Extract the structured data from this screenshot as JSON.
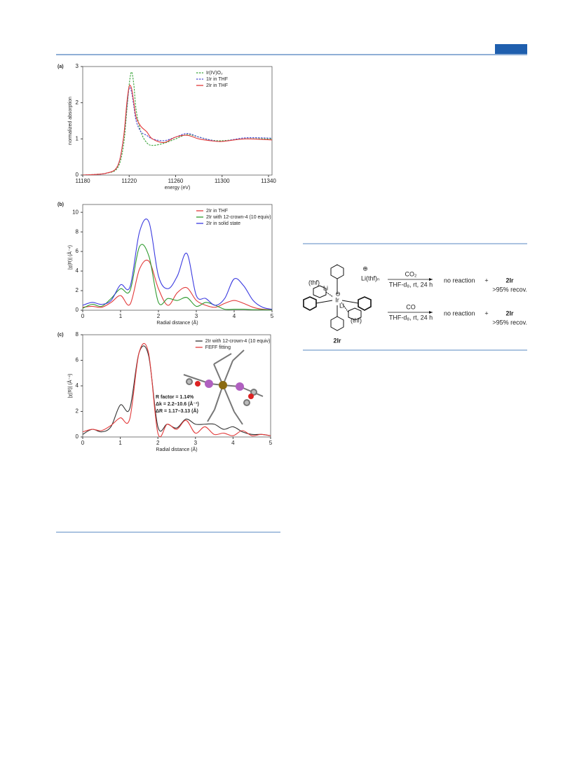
{
  "chart_data": [
    {
      "type": "line",
      "panel": "(a)",
      "xlabel": "energy (eV)",
      "ylabel": "normalized absorption",
      "xlim": [
        11180,
        11343
      ],
      "xticks": [
        11180,
        11220,
        11260,
        11300,
        11340
      ],
      "ylim": [
        0,
        3
      ],
      "yticks": [
        0,
        1,
        2,
        3
      ],
      "legend": "upper right",
      "x": [
        11180,
        11200,
        11210,
        11215,
        11218,
        11220,
        11222,
        11224,
        11226,
        11230,
        11235,
        11240,
        11250,
        11260,
        11270,
        11280,
        11290,
        11300,
        11320,
        11343
      ],
      "series": [
        {
          "name": "Ir(IV)O₂",
          "color": "#3aa43a",
          "dash": true,
          "values": [
            0,
            0.05,
            0.2,
            0.8,
            1.8,
            2.5,
            2.85,
            2.5,
            1.8,
            1.2,
            0.9,
            0.82,
            0.88,
            1.0,
            1.12,
            1.05,
            0.97,
            0.95,
            1.0,
            1.0
          ]
        },
        {
          "name": "1Ir in THF",
          "color": "#4a4ad0",
          "dash": true,
          "values": [
            0,
            0.05,
            0.25,
            1.0,
            1.9,
            2.4,
            2.3,
            1.9,
            1.5,
            1.2,
            1.1,
            1.0,
            0.95,
            1.05,
            1.15,
            1.05,
            0.97,
            0.93,
            1.03,
            1.02
          ]
        },
        {
          "name": "2Ir in THF",
          "color": "#e23a3a",
          "dash": false,
          "values": [
            0,
            0.05,
            0.25,
            1.0,
            2.0,
            2.45,
            2.4,
            2.0,
            1.6,
            1.35,
            1.2,
            1.0,
            0.9,
            1.05,
            1.1,
            1.0,
            0.95,
            0.93,
            1.0,
            0.97
          ]
        }
      ]
    },
    {
      "type": "line",
      "panel": "(b)",
      "xlabel": "Radial distance (Å)",
      "ylabel": "|χ(R)| (Å⁻⁴)",
      "xlim": [
        0,
        5
      ],
      "xticks": [
        0,
        1,
        2,
        3,
        4,
        5
      ],
      "ylim": [
        0,
        10.8
      ],
      "yticks": [
        0,
        2,
        4,
        6,
        8,
        10
      ],
      "legend": "upper right",
      "x": [
        0,
        0.25,
        0.5,
        0.75,
        1.0,
        1.25,
        1.5,
        1.75,
        2.0,
        2.25,
        2.5,
        2.75,
        3.0,
        3.25,
        3.5,
        3.75,
        4.0,
        4.25,
        4.5,
        4.75,
        5.0
      ],
      "series": [
        {
          "name": "2Ir in THF",
          "color": "#e23a3a",
          "dash": false,
          "values": [
            0.3,
            0.4,
            0.3,
            0.8,
            1.5,
            0.6,
            4.2,
            5.0,
            2.2,
            0.5,
            1.8,
            2.3,
            1.0,
            0.5,
            0.3,
            0.7,
            1.0,
            0.7,
            0.3,
            0.1,
            0.05
          ]
        },
        {
          "name": "2Ir with 12-crown-4 (10 equiv)",
          "color": "#2e9a2e",
          "dash": false,
          "values": [
            0.2,
            0.6,
            0.4,
            1.2,
            2.2,
            2.0,
            6.5,
            5.5,
            0.8,
            1.2,
            1.0,
            1.3,
            0.4,
            0.8,
            0.5,
            0.1,
            0.1,
            0.1,
            0.05,
            0.05,
            0.02
          ]
        },
        {
          "name": "2Ir in solid state",
          "color": "#3a3ae0",
          "dash": false,
          "values": [
            0.5,
            0.8,
            0.6,
            1.0,
            2.6,
            2.4,
            8.0,
            9.0,
            3.5,
            2.2,
            3.5,
            5.8,
            1.5,
            1.2,
            0.5,
            1.2,
            3.2,
            2.5,
            1.0,
            0.3,
            0.1
          ]
        }
      ]
    },
    {
      "type": "line",
      "panel": "(c)",
      "xlabel": "Radial distance (Å)",
      "ylabel": "|χ(R)| (Å⁻⁴)",
      "xlim": [
        0,
        5
      ],
      "xticks": [
        0,
        1,
        2,
        3,
        4,
        5
      ],
      "ylim": [
        0,
        8
      ],
      "yticks": [
        0,
        2,
        4,
        6,
        8
      ],
      "legend": "upper right",
      "annotations": [
        "R factor = 1.14%",
        "Δk = 2.2–10.6 (Å⁻¹)",
        "ΔR = 1.17–3.13 (Å)"
      ],
      "x": [
        0,
        0.25,
        0.5,
        0.75,
        1.0,
        1.25,
        1.5,
        1.75,
        2.0,
        2.25,
        2.5,
        2.75,
        3.0,
        3.25,
        3.5,
        3.75,
        4.0,
        4.25,
        4.5,
        4.75,
        5.0
      ],
      "series": [
        {
          "name": "2Ir with 12-crown-4 (10 equiv)",
          "color": "#333333",
          "dash": false,
          "values": [
            0.2,
            0.6,
            0.4,
            0.8,
            2.5,
            2.2,
            6.6,
            6.4,
            0.8,
            1.0,
            0.7,
            1.4,
            1.0,
            1.0,
            1.0,
            0.6,
            0.8,
            0.4,
            0.2,
            0.2,
            0.1
          ]
        },
        {
          "name": "FEFF fitting",
          "color": "#e23a3a",
          "dash": false,
          "values": [
            0.4,
            0.6,
            0.5,
            0.9,
            1.5,
            1.4,
            6.6,
            6.6,
            0.3,
            1.0,
            0.6,
            1.3,
            0.3,
            0.8,
            0.2,
            0.3,
            0.1,
            0.5,
            0.1,
            0.2,
            0.1
          ]
        }
      ]
    }
  ],
  "scheme": {
    "complex": {
      "thf_top": "(thf)",
      "li_top": "Li",
      "charge_minus": "⊖",
      "ir": "Ir",
      "li_bottom": "Li",
      "thf_bottom": "(thf)",
      "counterion_charge": "⊕",
      "counterion": "Li(thf)ₙ",
      "label": "2Ir"
    },
    "reactions": [
      {
        "reagent": "CO₂",
        "conditions": "THF-d₈, rt, 24 h",
        "result": "no reaction",
        "plus": "+",
        "product": "2Ir",
        "recovery": ">95% recov."
      },
      {
        "reagent": "CO",
        "conditions": "THF-d₈, rt, 24 h",
        "result": "no reaction",
        "plus": "+",
        "product": "2Ir",
        "recovery": ">95% recov."
      }
    ]
  }
}
